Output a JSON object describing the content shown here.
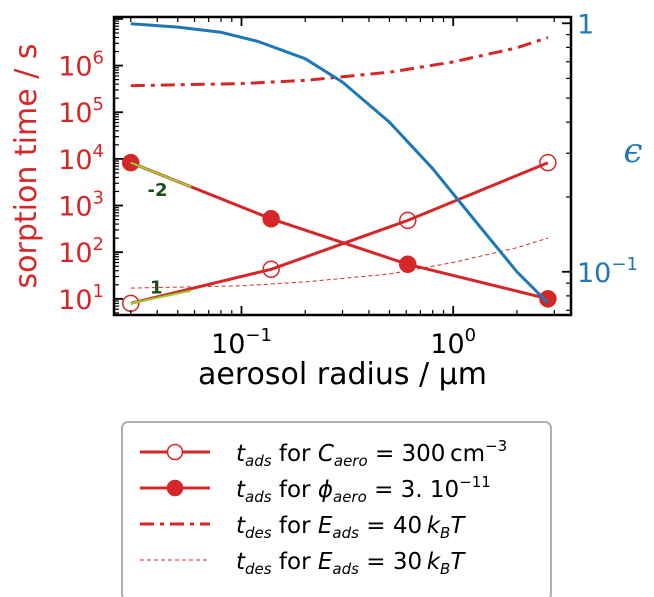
{
  "chart_data": {
    "type": "line",
    "xlabel": "aerosol radius  /  μm",
    "ylabel_left": "sorption time  / s",
    "ylabel_right": "ϵ",
    "x_scale": "log",
    "y_left_scale": "log",
    "y_right_scale": "log",
    "xlim": [
      0.025,
      3.6
    ],
    "ylim_left": [
      4.5,
      11000000.0
    ],
    "ylim_right": [
      0.067,
      1.06
    ],
    "grid": false,
    "legend_position": "bottom-center outside plot",
    "x_ticks": [
      {
        "value": 0.1,
        "label": "10",
        "exp": "−1"
      },
      {
        "value": 1,
        "label": "10",
        "exp": "0"
      }
    ],
    "y_left_ticks": [
      {
        "value": 10,
        "label": "10",
        "exp": "1"
      },
      {
        "value": 100,
        "label": "10",
        "exp": "2"
      },
      {
        "value": 1000,
        "label": "10",
        "exp": "3"
      },
      {
        "value": 10000,
        "label": "10",
        "exp": "4"
      },
      {
        "value": 100000,
        "label": "10",
        "exp": "5"
      },
      {
        "value": 1000000,
        "label": "10",
        "exp": "6"
      }
    ],
    "y_right_ticks": [
      {
        "value": 0.1,
        "label": "10",
        "exp": "−1"
      },
      {
        "value": 1,
        "label": "1",
        "exp": ""
      }
    ],
    "series": [
      {
        "name": "t_ads for C_aero = 300 cm^-3",
        "axis": "left",
        "style": "solid-open-markers",
        "color": "#d62728",
        "x": [
          0.03,
          0.138,
          0.61,
          2.8
        ],
        "y": [
          8,
          43,
          480,
          8300
        ]
      },
      {
        "name": "t_ads for phi_aero = 3.10^-11",
        "axis": "left",
        "style": "solid-filled-markers",
        "color": "#d62728",
        "x": [
          0.03,
          0.138,
          0.61,
          2.8
        ],
        "y": [
          8300,
          520,
          55,
          10
        ]
      },
      {
        "name": "t_des for E_ads = 40 k_B T",
        "axis": "left",
        "style": "dashdot",
        "color": "#d62728",
        "x": [
          0.03,
          0.1,
          0.2,
          0.5,
          1.0,
          2.0,
          2.8
        ],
        "y": [
          370000,
          410000,
          480000,
          720000,
          1200000,
          2400000,
          4000000
        ]
      },
      {
        "name": "t_des for E_ads = 30 k_B T",
        "axis": "left",
        "style": "thin-dashed",
        "color": "#d62728",
        "x": [
          0.03,
          0.1,
          0.2,
          0.5,
          1.0,
          2.0,
          2.8
        ],
        "y": [
          17,
          19,
          23,
          34,
          60,
          125,
          200
        ]
      },
      {
        "name": "epsilon",
        "axis": "right",
        "style": "solid",
        "color": "#1f77b4",
        "x": [
          0.03,
          0.05,
          0.08,
          0.12,
          0.2,
          0.3,
          0.5,
          0.8,
          1.2,
          2.0,
          2.8
        ],
        "y": [
          0.995,
          0.965,
          0.92,
          0.845,
          0.72,
          0.58,
          0.4,
          0.26,
          0.17,
          0.1,
          0.075
        ]
      }
    ],
    "annotations": [
      {
        "text": "-2",
        "x": 0.036,
        "y": 1600,
        "color": "#1a4d1a"
      },
      {
        "text": "1",
        "x": 0.037,
        "y": 13,
        "color": "#1a4d1a"
      }
    ],
    "slope_lines": [
      {
        "x": [
          0.03,
          0.058
        ],
        "y": [
          8300,
          2500
        ]
      },
      {
        "x": [
          0.03,
          0.058
        ],
        "y": [
          8,
          15
        ]
      }
    ],
    "legend": [
      {
        "var": "t",
        "sub": "ads",
        "pre": " for ",
        "sym": "C",
        "symsub": "aero",
        "rest": " = 300 cm",
        "sup": "−3"
      },
      {
        "var": "t",
        "sub": "ads",
        "pre": " for ",
        "sym": "ϕ",
        "symsub": "aero",
        "rest": " = 3. 10",
        "sup": "−11"
      },
      {
        "var": "t",
        "sub": "des",
        "pre": " for ",
        "sym": "E",
        "symsub": "ads",
        "rest": " = 40 ",
        "kbt": true
      },
      {
        "var": "t",
        "sub": "des",
        "pre": " for ",
        "sym": "E",
        "symsub": "ads",
        "rest": " = 30 ",
        "kbt": true
      }
    ],
    "colors": {
      "red": "#d62728",
      "blue": "#1f77b4",
      "slope": "#9acd32",
      "annotation": "#1a4d1a"
    }
  }
}
